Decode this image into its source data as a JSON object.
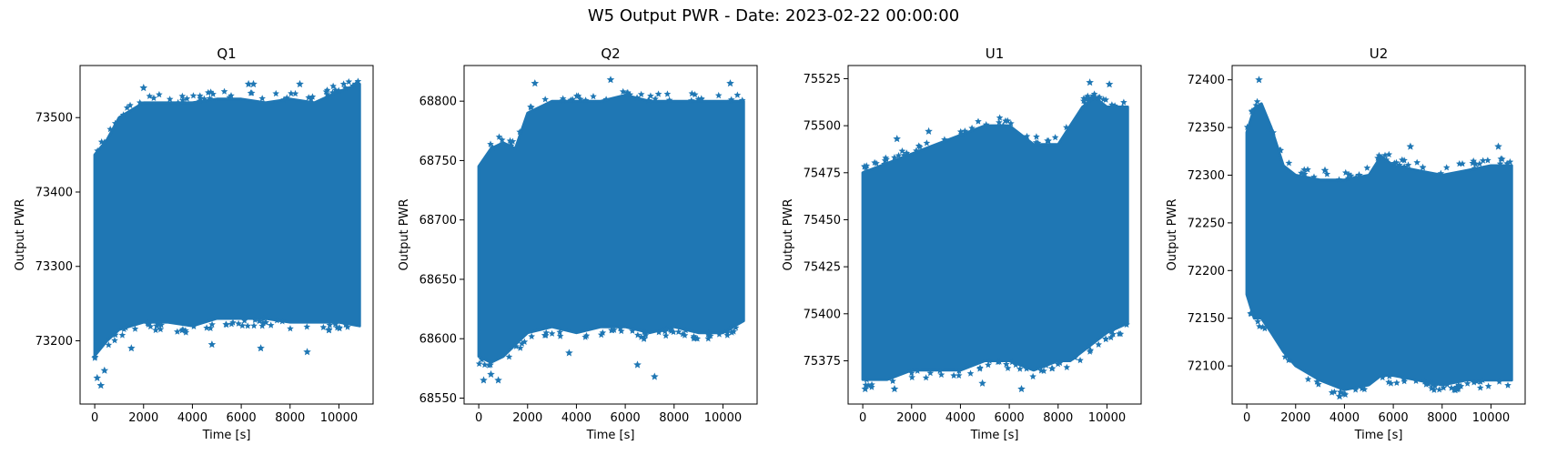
{
  "figure": {
    "title": "W5 Output PWR - Date: 2023-02-22 00:00:00"
  },
  "colors": {
    "series": "#1f77b4",
    "axes": "#000000"
  },
  "chart_data": [
    {
      "type": "scatter",
      "marker": "star",
      "title": "Q1",
      "xlabel": "Time [s]",
      "ylabel": "Output PWR",
      "xlim": [
        -600,
        11400
      ],
      "ylim": [
        73115,
        73570
      ],
      "xticks": [
        0,
        2000,
        4000,
        6000,
        8000,
        10000
      ],
      "yticks": [
        73200,
        73300,
        73400,
        73500
      ],
      "x_range": [
        0,
        10850
      ],
      "band": {
        "x": [
          0,
          500,
          1000,
          2000,
          3000,
          4000,
          5000,
          6000,
          7000,
          8000,
          9000,
          10000,
          10850
        ],
        "upper": [
          73450,
          73470,
          73500,
          73520,
          73520,
          73520,
          73525,
          73525,
          73520,
          73525,
          73520,
          73535,
          73545
        ],
        "lower": [
          73180,
          73200,
          73215,
          73225,
          73225,
          73220,
          73230,
          73230,
          73230,
          73225,
          73225,
          73225,
          73220
        ]
      },
      "outliers": [
        [
          100,
          73150
        ],
        [
          250,
          73140
        ],
        [
          400,
          73160
        ],
        [
          2000,
          73540
        ],
        [
          6300,
          73545
        ],
        [
          6500,
          73545
        ],
        [
          8400,
          73545
        ],
        [
          1500,
          73190
        ],
        [
          4800,
          73195
        ],
        [
          6800,
          73190
        ],
        [
          8700,
          73185
        ],
        [
          10700,
          73545
        ]
      ]
    },
    {
      "type": "scatter",
      "marker": "star",
      "title": "Q2",
      "xlabel": "Time [s]",
      "ylabel": "Output PWR",
      "xlim": [
        -600,
        11400
      ],
      "ylim": [
        68545,
        68830
      ],
      "xticks": [
        0,
        2000,
        4000,
        6000,
        8000,
        10000
      ],
      "yticks": [
        68550,
        68600,
        68650,
        68700,
        68750,
        68800
      ],
      "x_range": [
        0,
        10850
      ],
      "band": {
        "x": [
          0,
          500,
          1000,
          1500,
          2000,
          3000,
          4000,
          5000,
          6000,
          7000,
          8000,
          9000,
          10000,
          10850
        ],
        "upper": [
          68745,
          68760,
          68765,
          68760,
          68790,
          68800,
          68800,
          68800,
          68805,
          68800,
          68800,
          68800,
          68800,
          68800
        ],
        "lower": [
          68585,
          68580,
          68585,
          68595,
          68605,
          68610,
          68605,
          68610,
          68610,
          68605,
          68610,
          68605,
          68605,
          68615
        ]
      },
      "outliers": [
        [
          200,
          68565
        ],
        [
          500,
          68570
        ],
        [
          800,
          68565
        ],
        [
          2300,
          68815
        ],
        [
          5400,
          68818
        ],
        [
          7200,
          68568
        ],
        [
          6500,
          68578
        ],
        [
          10300,
          68815
        ],
        [
          3700,
          68588
        ]
      ]
    },
    {
      "type": "scatter",
      "marker": "star",
      "title": "U1",
      "xlabel": "Time [s]",
      "ylabel": "Output PWR",
      "xlim": [
        -600,
        11400
      ],
      "ylim": [
        75352,
        75532
      ],
      "xticks": [
        0,
        2000,
        4000,
        6000,
        8000,
        10000
      ],
      "yticks": [
        75375,
        75400,
        75425,
        75450,
        75475,
        75500,
        75525
      ],
      "x_range": [
        0,
        10850
      ],
      "band": {
        "x": [
          0,
          1000,
          2000,
          3000,
          4000,
          5000,
          6000,
          7000,
          8000,
          8500,
          9000,
          9500,
          10000,
          10850
        ],
        "upper": [
          75475,
          75480,
          75485,
          75490,
          75495,
          75500,
          75500,
          75490,
          75490,
          75500,
          75510,
          75515,
          75510,
          75510
        ],
        "lower": [
          75365,
          75365,
          75370,
          75370,
          75370,
          75375,
          75375,
          75370,
          75375,
          75375,
          75380,
          75385,
          75390,
          75395
        ]
      },
      "outliers": [
        [
          100,
          75360
        ],
        [
          1300,
          75360
        ],
        [
          1400,
          75493
        ],
        [
          2700,
          75497
        ],
        [
          4900,
          75363
        ],
        [
          9300,
          75523
        ],
        [
          9500,
          75515
        ],
        [
          10100,
          75522
        ],
        [
          6500,
          75360
        ]
      ]
    },
    {
      "type": "scatter",
      "marker": "star",
      "title": "U2",
      "xlabel": "Time [s]",
      "ylabel": "Output PWR",
      "xlim": [
        -600,
        11400
      ],
      "ylim": [
        72060,
        72415
      ],
      "xticks": [
        0,
        2000,
        4000,
        6000,
        8000,
        10000
      ],
      "yticks": [
        72100,
        72150,
        72200,
        72250,
        72300,
        72350,
        72400
      ],
      "x_range": [
        0,
        10850
      ],
      "band": {
        "x": [
          0,
          300,
          600,
          1000,
          1500,
          2000,
          3000,
          4000,
          5000,
          5500,
          6000,
          7000,
          8000,
          9000,
          10000,
          10850
        ],
        "upper": [
          72345,
          72370,
          72375,
          72350,
          72310,
          72300,
          72295,
          72295,
          72300,
          72320,
          72310,
          72305,
          72300,
          72305,
          72310,
          72310
        ],
        "lower": [
          72175,
          72150,
          72150,
          72135,
          72115,
          72100,
          72085,
          72075,
          72080,
          72090,
          72090,
          72085,
          72080,
          72085,
          72085,
          72085
        ]
      },
      "outliers": [
        [
          500,
          72400
        ],
        [
          3200,
          72305
        ],
        [
          4600,
          72300
        ],
        [
          6700,
          72330
        ],
        [
          10300,
          72330
        ],
        [
          3800,
          72068
        ],
        [
          8500,
          72075
        ],
        [
          200,
          72155
        ]
      ]
    }
  ]
}
